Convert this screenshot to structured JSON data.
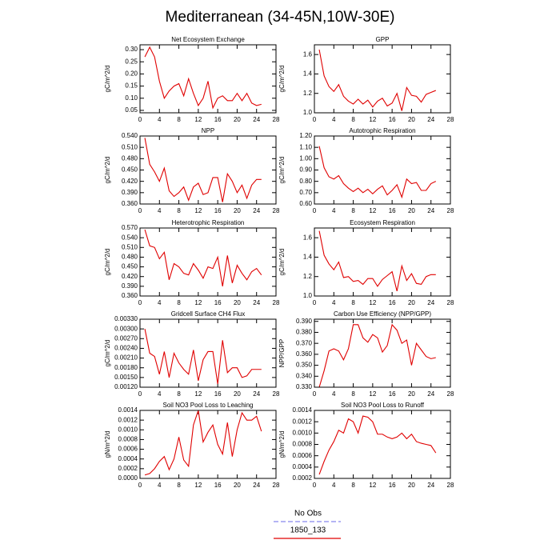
{
  "title": "Mediterranean (34-45N,10W-30E)",
  "legend": [
    {
      "name": "No Obs",
      "color": "#8888ee",
      "dash": true
    },
    {
      "name": "1850_133",
      "color": "#e00000",
      "dash": false
    }
  ],
  "chart_data": [
    {
      "type": "line",
      "title": "Net Ecosystem Exchange",
      "ylabel": "gC/m^2/d",
      "color": "#e00000",
      "x": [
        1,
        2,
        3,
        4,
        5,
        6,
        7,
        8,
        9,
        10,
        11,
        12,
        13,
        14,
        15,
        16,
        17,
        18,
        19,
        20,
        21,
        22,
        23,
        24,
        25
      ],
      "values": [
        0.27,
        0.31,
        0.27,
        0.17,
        0.1,
        0.13,
        0.15,
        0.16,
        0.11,
        0.18,
        0.12,
        0.07,
        0.1,
        0.17,
        0.06,
        0.1,
        0.11,
        0.09,
        0.09,
        0.12,
        0.09,
        0.12,
        0.08,
        0.07,
        0.075
      ],
      "xlim": [
        0,
        28
      ],
      "xticks": [
        0,
        4,
        8,
        12,
        16,
        20,
        24,
        28
      ],
      "ylim": [
        0.04,
        0.32
      ],
      "yticks": [
        0.05,
        {
          "value": 0.1,
          "label": "0.10"
        },
        0.15,
        {
          "value": 0.2,
          "label": "0.20"
        },
        0.25,
        {
          "value": 0.3,
          "label": "0.30"
        }
      ]
    },
    {
      "type": "line",
      "title": "GPP",
      "ylabel": "gC/m^2/d",
      "color": "#e00000",
      "x": [
        1,
        2,
        3,
        4,
        5,
        6,
        7,
        8,
        9,
        10,
        11,
        12,
        13,
        14,
        15,
        16,
        17,
        18,
        19,
        20,
        21,
        22,
        23,
        24,
        25
      ],
      "values": [
        1.65,
        1.38,
        1.27,
        1.22,
        1.29,
        1.17,
        1.12,
        1.09,
        1.14,
        1.09,
        1.13,
        1.06,
        1.12,
        1.15,
        1.07,
        1.1,
        1.2,
        1.02,
        1.26,
        1.18,
        1.17,
        1.11,
        1.19,
        1.21,
        1.23
      ],
      "xlim": [
        0,
        28
      ],
      "xticks": [
        0,
        4,
        8,
        12,
        16,
        20,
        24,
        28
      ],
      "ylim": [
        1.0,
        1.7
      ],
      "yticks": [
        {
          "value": 1,
          "label": "1.0"
        },
        1.2,
        1.4,
        1.6
      ]
    },
    {
      "type": "line",
      "title": "NPP",
      "ylabel": "gC/m^2/d",
      "color": "#e00000",
      "x": [
        1,
        2,
        3,
        4,
        5,
        6,
        7,
        8,
        9,
        10,
        11,
        12,
        13,
        14,
        15,
        16,
        17,
        18,
        19,
        20,
        21,
        22,
        23,
        24,
        25
      ],
      "values": [
        0.535,
        0.465,
        0.445,
        0.42,
        0.455,
        0.395,
        0.38,
        0.39,
        0.405,
        0.37,
        0.405,
        0.415,
        0.385,
        0.39,
        0.43,
        0.43,
        0.365,
        0.44,
        0.42,
        0.39,
        0.41,
        0.375,
        0.41,
        0.425,
        0.425
      ],
      "xlim": [
        0,
        28
      ],
      "xticks": [
        0,
        4,
        8,
        12,
        16,
        20,
        24,
        28
      ],
      "ylim": [
        0.36,
        0.54
      ],
      "yticks": [
        {
          "value": 0.36,
          "label": "0.360"
        },
        {
          "value": 0.39,
          "label": "0.390"
        },
        {
          "value": 0.42,
          "label": "0.420"
        },
        {
          "value": 0.45,
          "label": "0.450"
        },
        {
          "value": 0.48,
          "label": "0.480"
        },
        {
          "value": 0.51,
          "label": "0.510"
        },
        {
          "value": 0.54,
          "label": "0.540"
        }
      ]
    },
    {
      "type": "line",
      "title": "Autotrophic Respiration",
      "ylabel": "gC/m^2/d",
      "color": "#e00000",
      "x": [
        1,
        2,
        3,
        4,
        5,
        6,
        7,
        8,
        9,
        10,
        11,
        12,
        13,
        14,
        15,
        16,
        17,
        18,
        19,
        20,
        21,
        22,
        23,
        24,
        25
      ],
      "values": [
        1.11,
        0.92,
        0.84,
        0.82,
        0.85,
        0.78,
        0.74,
        0.71,
        0.74,
        0.7,
        0.73,
        0.69,
        0.73,
        0.76,
        0.68,
        0.72,
        0.77,
        0.66,
        0.82,
        0.78,
        0.79,
        0.72,
        0.72,
        0.78,
        0.8
      ],
      "xlim": [
        0,
        28
      ],
      "xticks": [
        0,
        4,
        8,
        12,
        16,
        20,
        24,
        28
      ],
      "ylim": [
        0.6,
        1.2
      ],
      "yticks": [
        {
          "value": 0.6,
          "label": "0.60"
        },
        {
          "value": 0.7,
          "label": "0.70"
        },
        {
          "value": 0.8,
          "label": "0.80"
        },
        {
          "value": 0.9,
          "label": "0.90"
        },
        {
          "value": 1,
          "label": "1.00"
        },
        {
          "value": 1.1,
          "label": "1.10"
        },
        {
          "value": 1.2,
          "label": "1.20"
        }
      ]
    },
    {
      "type": "line",
      "title": "Heterotrophic Respiration",
      "ylabel": "gC/m^2/d",
      "color": "#e00000",
      "x": [
        1,
        2,
        3,
        4,
        5,
        6,
        7,
        8,
        9,
        10,
        11,
        12,
        13,
        14,
        15,
        16,
        17,
        18,
        19,
        20,
        21,
        22,
        23,
        24,
        25
      ],
      "values": [
        0.565,
        0.515,
        0.51,
        0.475,
        0.495,
        0.41,
        0.46,
        0.45,
        0.43,
        0.425,
        0.46,
        0.44,
        0.415,
        0.45,
        0.445,
        0.48,
        0.39,
        0.485,
        0.4,
        0.455,
        0.43,
        0.41,
        0.435,
        0.445,
        0.425
      ],
      "xlim": [
        0,
        28
      ],
      "xticks": [
        0,
        4,
        8,
        12,
        16,
        20,
        24,
        28
      ],
      "ylim": [
        0.36,
        0.57
      ],
      "yticks": [
        {
          "value": 0.36,
          "label": "0.360"
        },
        {
          "value": 0.39,
          "label": "0.390"
        },
        {
          "value": 0.42,
          "label": "0.420"
        },
        {
          "value": 0.45,
          "label": "0.450"
        },
        {
          "value": 0.48,
          "label": "0.480"
        },
        {
          "value": 0.51,
          "label": "0.510"
        },
        {
          "value": 0.54,
          "label": "0.540"
        },
        {
          "value": 0.57,
          "label": "0.570"
        }
      ]
    },
    {
      "type": "line",
      "title": "Ecosystem Respiration",
      "ylabel": "gC/m^2/d",
      "color": "#e00000",
      "x": [
        1,
        2,
        3,
        4,
        5,
        6,
        7,
        8,
        9,
        10,
        11,
        12,
        13,
        14,
        15,
        16,
        17,
        18,
        19,
        20,
        21,
        22,
        23,
        24,
        25
      ],
      "values": [
        1.67,
        1.42,
        1.33,
        1.27,
        1.35,
        1.19,
        1.2,
        1.15,
        1.16,
        1.12,
        1.18,
        1.18,
        1.1,
        1.17,
        1.21,
        1.25,
        1.05,
        1.31,
        1.16,
        1.23,
        1.13,
        1.12,
        1.2,
        1.22,
        1.22
      ],
      "xlim": [
        0,
        28
      ],
      "xticks": [
        0,
        4,
        8,
        12,
        16,
        20,
        24,
        28
      ],
      "ylim": [
        1.0,
        1.7
      ],
      "yticks": [
        {
          "value": 1,
          "label": "1.0"
        },
        1.2,
        1.4,
        1.6
      ]
    },
    {
      "type": "line",
      "title": "Gridcell Surface CH4 Flux",
      "ylabel": "gC/m^2/d",
      "color": "#e00000",
      "x": [
        1,
        2,
        3,
        4,
        5,
        6,
        7,
        8,
        9,
        10,
        11,
        12,
        13,
        14,
        15,
        16,
        17,
        18,
        19,
        20,
        21,
        22,
        23,
        24,
        25
      ],
      "values": [
        0.003,
        0.00225,
        0.00215,
        0.0016,
        0.0023,
        0.0015,
        0.00225,
        0.00195,
        0.00175,
        0.0016,
        0.00235,
        0.0014,
        0.00205,
        0.0023,
        0.0023,
        0.0013,
        0.00265,
        0.00165,
        0.0018,
        0.0018,
        0.0015,
        0.00155,
        0.00175,
        0.00175,
        0.00175
      ],
      "xlim": [
        0,
        28
      ],
      "xticks": [
        0,
        4,
        8,
        12,
        16,
        20,
        24,
        28
      ],
      "ylim": [
        0.0012,
        0.0033
      ],
      "yticks": [
        {
          "value": 0.0012,
          "label": "0.00120"
        },
        {
          "value": 0.0015,
          "label": "0.00150"
        },
        {
          "value": 0.0018,
          "label": "0.00180"
        },
        {
          "value": 0.0021,
          "label": "0.00210"
        },
        {
          "value": 0.0024,
          "label": "0.00240"
        },
        {
          "value": 0.0027,
          "label": "0.00270"
        },
        {
          "value": 0.003,
          "label": "0.00300"
        },
        {
          "value": 0.0033,
          "label": "0.00330"
        }
      ]
    },
    {
      "type": "line",
      "title": "Carbon Use Efficiency (NPP/GPP)",
      "ylabel": "NPP/GPP",
      "color": "#e00000",
      "x": [
        1,
        2,
        3,
        4,
        5,
        6,
        7,
        8,
        9,
        10,
        11,
        12,
        13,
        14,
        15,
        16,
        17,
        18,
        19,
        20,
        21,
        22,
        23,
        24,
        25
      ],
      "values": [
        0.33,
        0.345,
        0.363,
        0.365,
        0.363,
        0.355,
        0.365,
        0.387,
        0.387,
        0.375,
        0.371,
        0.378,
        0.375,
        0.362,
        0.368,
        0.387,
        0.382,
        0.37,
        0.373,
        0.35,
        0.37,
        0.364,
        0.358,
        0.356,
        0.357
      ],
      "xlim": [
        0,
        28
      ],
      "xticks": [
        0,
        4,
        8,
        12,
        16,
        20,
        24,
        28
      ],
      "ylim": [
        0.33,
        0.392
      ],
      "yticks": [
        {
          "value": 0.33,
          "label": "0.330"
        },
        {
          "value": 0.34,
          "label": "0.340"
        },
        {
          "value": 0.35,
          "label": "0.350"
        },
        {
          "value": 0.36,
          "label": "0.360"
        },
        {
          "value": 0.37,
          "label": "0.370"
        },
        {
          "value": 0.38,
          "label": "0.380"
        },
        {
          "value": 0.39,
          "label": "0.390"
        }
      ]
    },
    {
      "type": "line",
      "title": "Soil NO3 Pool Loss to Leaching",
      "ylabel": "gN/m^2/d",
      "color": "#e00000",
      "x": [
        1,
        2,
        3,
        4,
        5,
        6,
        7,
        8,
        9,
        10,
        11,
        12,
        13,
        14,
        15,
        16,
        17,
        18,
        19,
        20,
        21,
        22,
        23,
        24,
        25
      ],
      "values": [
        7e-05,
        0.0001,
        0.0002,
        0.00035,
        0.00045,
        0.00018,
        0.0004,
        0.00085,
        0.00038,
        0.00025,
        0.0011,
        0.0014,
        0.00075,
        0.00095,
        0.0011,
        0.0007,
        0.0005,
        0.00115,
        0.00045,
        0.001,
        0.00135,
        0.0012,
        0.0012,
        0.00128,
        0.00097
      ],
      "xlim": [
        0,
        28
      ],
      "xticks": [
        0,
        4,
        8,
        12,
        16,
        20,
        24,
        28
      ],
      "ylim": [
        0,
        0.0014
      ],
      "yticks": [
        {
          "value": 0,
          "label": "0.0000"
        },
        {
          "value": 0.0002,
          "label": "0.0002"
        },
        {
          "value": 0.0004,
          "label": "0.0004"
        },
        {
          "value": 0.0006,
          "label": "0.0006"
        },
        {
          "value": 0.0008,
          "label": "0.0008"
        },
        {
          "value": 0.001,
          "label": "0.0010"
        },
        {
          "value": 0.0012,
          "label": "0.0012"
        },
        {
          "value": 0.0014,
          "label": "0.0014"
        }
      ]
    },
    {
      "type": "line",
      "title": "Soil NO3 Pool Loss to Runoff",
      "ylabel": "gN/m^2/d",
      "color": "#e00000",
      "x": [
        1,
        2,
        3,
        4,
        5,
        6,
        7,
        8,
        9,
        10,
        11,
        12,
        13,
        14,
        15,
        16,
        17,
        18,
        19,
        20,
        21,
        22,
        23,
        24,
        25
      ],
      "values": [
        0.00027,
        0.0005,
        0.0007,
        0.00085,
        0.00105,
        0.001,
        0.00125,
        0.0012,
        0.001,
        0.0013,
        0.00128,
        0.0012,
        0.00098,
        0.00098,
        0.00093,
        0.0009,
        0.00093,
        0.001,
        0.0009,
        0.00098,
        0.00085,
        0.00082,
        0.0008,
        0.00078,
        0.00065
      ],
      "xlim": [
        0,
        28
      ],
      "xticks": [
        0,
        4,
        8,
        12,
        16,
        20,
        24,
        28
      ],
      "ylim": [
        0.0002,
        0.0014
      ],
      "yticks": [
        {
          "value": 0.0002,
          "label": "0.0002"
        },
        {
          "value": 0.0004,
          "label": "0.0004"
        },
        {
          "value": 0.0006,
          "label": "0.0006"
        },
        {
          "value": 0.0008,
          "label": "0.0008"
        },
        {
          "value": 0.001,
          "label": "0.0010"
        },
        {
          "value": 0.0012,
          "label": "0.0012"
        },
        {
          "value": 0.0014,
          "label": "0.0014"
        }
      ]
    }
  ]
}
